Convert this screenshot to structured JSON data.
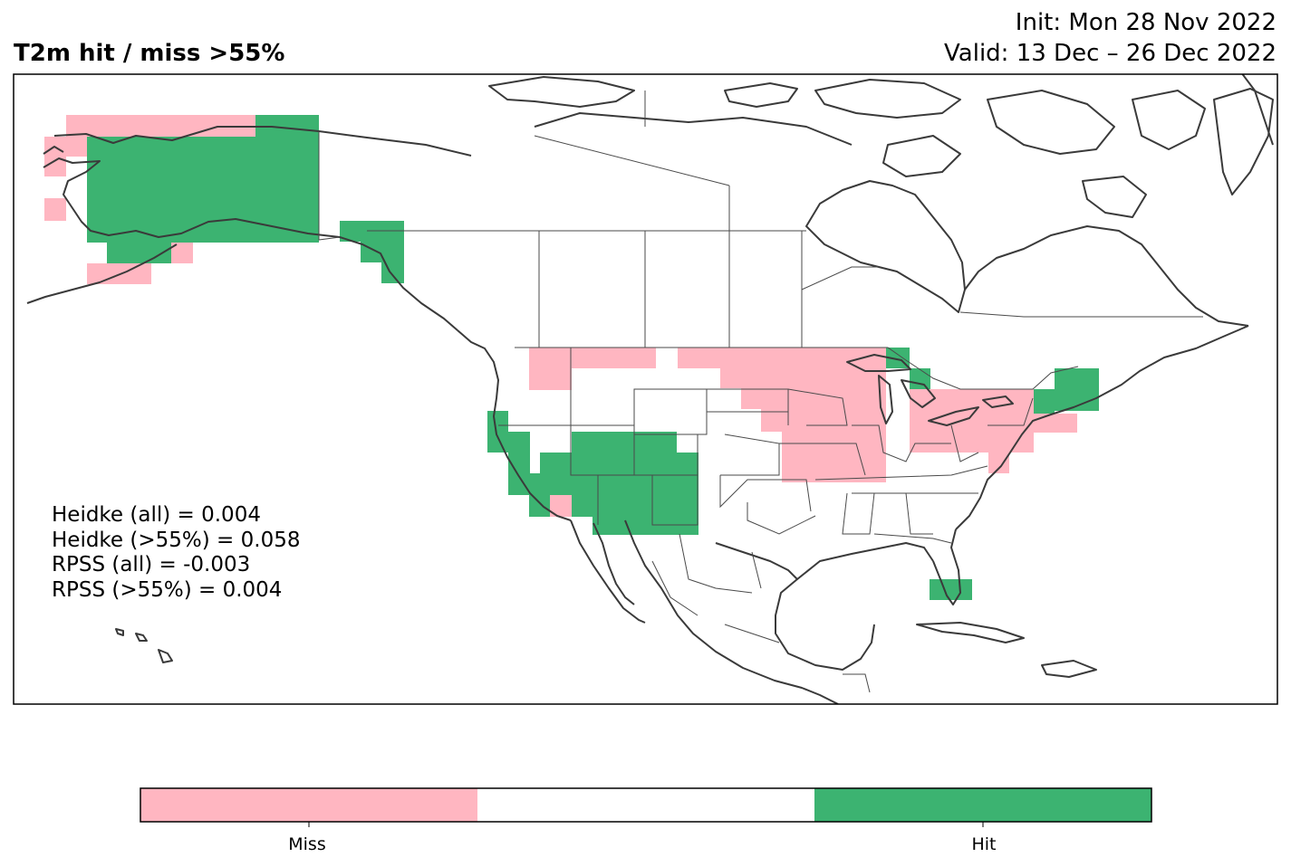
{
  "header": {
    "title": "T2m hit / miss  >55%",
    "init": "Init: Mon 28 Nov 2022",
    "valid": "Valid: 13 Dec – 26 Dec 2022"
  },
  "stats": [
    "Heidke (all) = 0.004",
    "Heidke (>55%) = 0.058",
    "RPSS (all) = -0.003",
    "RPSS (>55%) = 0.004"
  ],
  "colorbar": {
    "categories": [
      {
        "label": "Miss",
        "color": "#ffb6c1"
      },
      {
        "label": "",
        "color": "#ffffff"
      },
      {
        "label": "Hit",
        "color": "#3cb371"
      }
    ]
  },
  "colors": {
    "miss": "#ffb6c1",
    "hit": "#3cb371",
    "coast": "#3a3a3a",
    "border": "#4a4a4a"
  },
  "map": {
    "region": "North America",
    "projection": "equirectangular"
  }
}
